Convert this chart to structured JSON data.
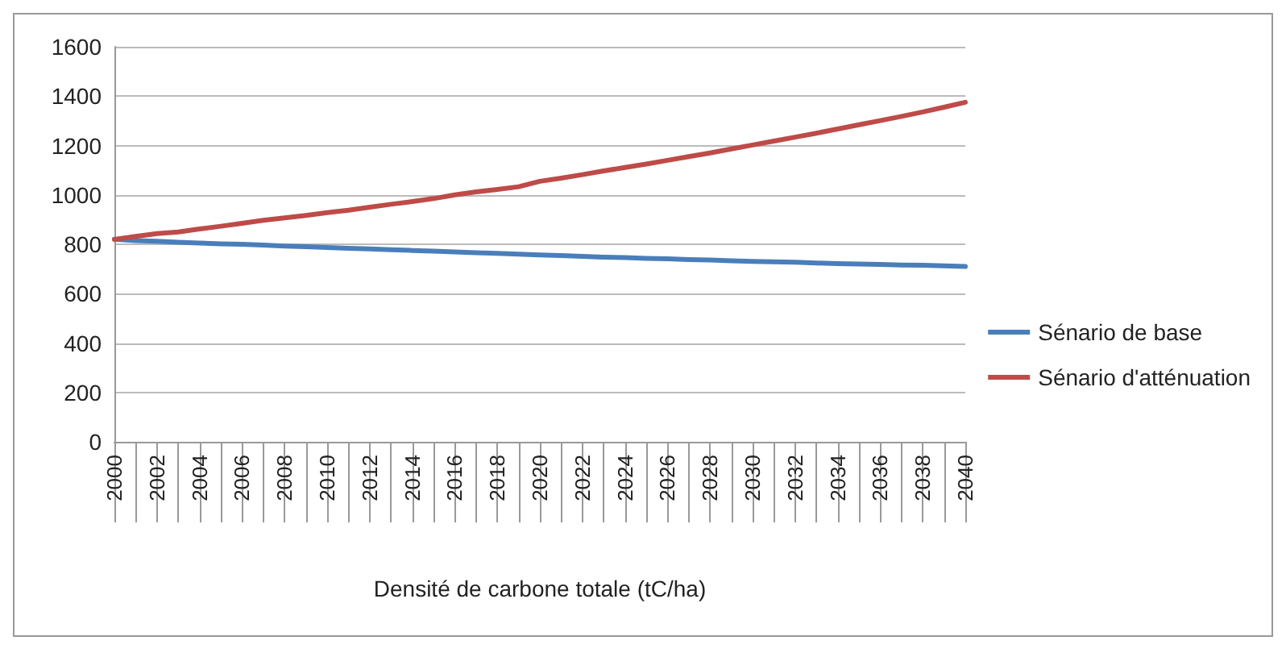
{
  "chart_data": {
    "type": "line",
    "xlabel": "Densité de carbone totale (tC/ha)",
    "categories": [
      "2000",
      null,
      "2002",
      null,
      "2004",
      null,
      "2006",
      null,
      "2008",
      null,
      "2010",
      null,
      "2012",
      null,
      "2014",
      null,
      "2016",
      null,
      "2018",
      null,
      "2020",
      null,
      "2022",
      null,
      "2024",
      null,
      "2026",
      null,
      "2028",
      null,
      "2030",
      null,
      "2032",
      null,
      "2034",
      null,
      "2036",
      null,
      "2038",
      null,
      "2040"
    ],
    "series": [
      {
        "name": "Sénario de base",
        "color": "#4a7ebb",
        "values": [
          820,
          815,
          812,
          808,
          805,
          802,
          800,
          797,
          793,
          790,
          787,
          784,
          781,
          778,
          775,
          772,
          769,
          766,
          763,
          760,
          757,
          754,
          751,
          748,
          746,
          743,
          741,
          738,
          736,
          733,
          731,
          729,
          727,
          724,
          722,
          720,
          718,
          716,
          715,
          713,
          710
        ]
      },
      {
        "name": "Sénario d'atténuation",
        "color": "#be4b48",
        "values": [
          820,
          832,
          843,
          850,
          862,
          873,
          885,
          897,
          907,
          917,
          928,
          938,
          950,
          962,
          973,
          985,
          1000,
          1012,
          1022,
          1033,
          1055,
          1068,
          1082,
          1097,
          1111,
          1125,
          1140,
          1155,
          1170,
          1186,
          1202,
          1218,
          1234,
          1250,
          1267,
          1284,
          1301,
          1318,
          1336,
          1355,
          1375
        ]
      }
    ],
    "ylim": [
      0,
      1600
    ],
    "yticks": [
      0,
      200,
      400,
      600,
      800,
      1000,
      1200,
      1400,
      1600
    ],
    "grid": "y",
    "legend": "right",
    "marker": "none",
    "line_style": "solid"
  }
}
